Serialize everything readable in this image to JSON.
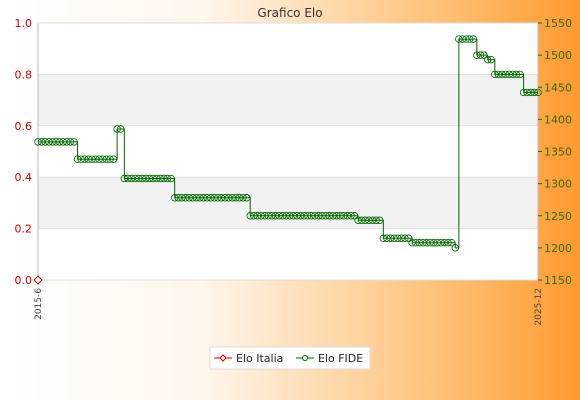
{
  "chart_data": {
    "type": "line",
    "title": "Grafico Elo",
    "y_left": {
      "min": 0.0,
      "max": 1.0,
      "ticks": [
        "0.0",
        "0.2",
        "0.4",
        "0.6",
        "0.8",
        "1.0"
      ],
      "color": "#cc0000"
    },
    "y_right": {
      "min": 1150,
      "max": 1550,
      "ticks": [
        "1150",
        "1200",
        "1250",
        "1300",
        "1350",
        "1400",
        "1450",
        "1500",
        "1550"
      ],
      "color": "#336600"
    },
    "grid": true,
    "legend_position": "bottom-center",
    "x_label_first": "2015-6",
    "x_label_last": "2025-12",
    "series": [
      {
        "name": "Elo Italia",
        "axis": "left",
        "color": "#cc0000",
        "marker": "diamond",
        "values": [
          0.0
        ]
      },
      {
        "name": "Elo FIDE",
        "axis": "right",
        "color": "#006600",
        "marker": "circle",
        "values": [
          1365,
          1365,
          1365,
          1365,
          1365,
          1365,
          1365,
          1365,
          1365,
          1365,
          1365,
          1338,
          1338,
          1338,
          1338,
          1338,
          1338,
          1338,
          1338,
          1338,
          1338,
          1338,
          1385,
          1385,
          1308,
          1308,
          1308,
          1308,
          1308,
          1308,
          1308,
          1308,
          1308,
          1308,
          1308,
          1308,
          1308,
          1308,
          1278,
          1278,
          1278,
          1278,
          1278,
          1278,
          1278,
          1278,
          1278,
          1278,
          1278,
          1278,
          1278,
          1278,
          1278,
          1278,
          1278,
          1278,
          1278,
          1278,
          1278,
          1250,
          1250,
          1250,
          1250,
          1250,
          1250,
          1250,
          1250,
          1250,
          1250,
          1250,
          1250,
          1250,
          1250,
          1250,
          1250,
          1250,
          1250,
          1250,
          1250,
          1250,
          1250,
          1250,
          1250,
          1250,
          1250,
          1250,
          1250,
          1250,
          1250,
          1243,
          1243,
          1243,
          1243,
          1243,
          1243,
          1243,
          1215,
          1215,
          1215,
          1215,
          1215,
          1215,
          1215,
          1215,
          1208,
          1208,
          1208,
          1208,
          1208,
          1208,
          1208,
          1208,
          1208,
          1208,
          1208,
          1208,
          1200,
          1525,
          1525,
          1525,
          1525,
          1525,
          1500,
          1500,
          1500,
          1493,
          1493,
          1470,
          1470,
          1470,
          1470,
          1470,
          1470,
          1470,
          1470,
          1442,
          1442,
          1442,
          1442,
          1442
        ]
      }
    ]
  }
}
